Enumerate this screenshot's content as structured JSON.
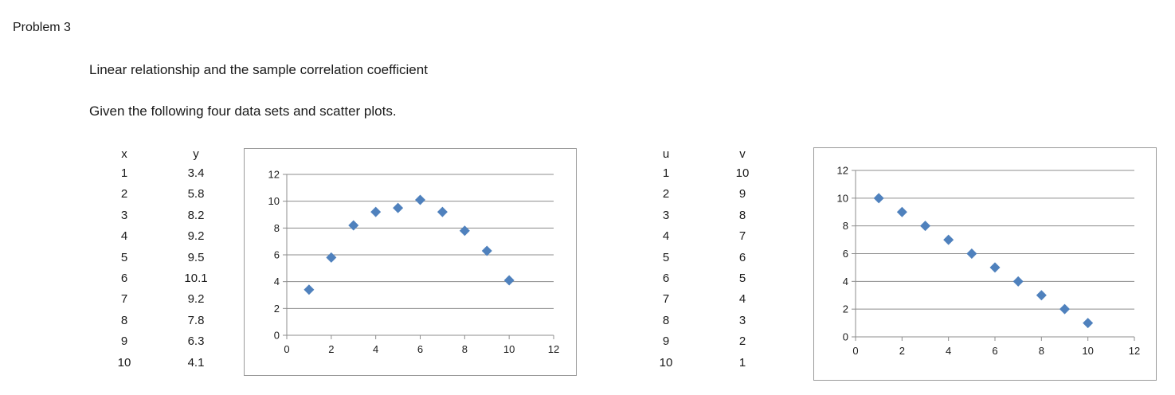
{
  "problem_title": "Problem 3",
  "topic": "Linear relationship and the sample correlation coefficient",
  "instructions": "Given the following four data sets and scatter plots.",
  "table1": {
    "headers": [
      "x",
      "y"
    ],
    "x": [
      "1",
      "2",
      "3",
      "4",
      "5",
      "6",
      "7",
      "8",
      "9",
      "10"
    ],
    "y": [
      "3.4",
      "5.8",
      "8.2",
      "9.2",
      "9.5",
      "10.1",
      "9.2",
      "7.8",
      "6.3",
      "4.1"
    ]
  },
  "table2": {
    "headers": [
      "u",
      "v"
    ],
    "u": [
      "1",
      "2",
      "3",
      "4",
      "5",
      "6",
      "7",
      "8",
      "9",
      "10"
    ],
    "v": [
      "10",
      "9",
      "8",
      "7",
      "6",
      "5",
      "4",
      "3",
      "2",
      "1"
    ]
  },
  "chart_data": [
    {
      "type": "scatter",
      "x": [
        1,
        2,
        3,
        4,
        5,
        6,
        7,
        8,
        9,
        10
      ],
      "y": [
        3.4,
        5.8,
        8.2,
        9.2,
        9.5,
        10.1,
        9.2,
        7.8,
        6.3,
        4.1
      ],
      "xlim": [
        0,
        12
      ],
      "ylim": [
        0,
        12
      ],
      "xticks": [
        "0",
        "2",
        "4",
        "6",
        "8",
        "10",
        "12"
      ],
      "yticks": [
        "0",
        "2",
        "4",
        "6",
        "8",
        "10",
        "12"
      ],
      "grid": "horizontal",
      "marker": "diamond",
      "color": "#4f81bd"
    },
    {
      "type": "scatter",
      "x": [
        1,
        2,
        3,
        4,
        5,
        6,
        7,
        8,
        9,
        10
      ],
      "y": [
        10,
        9,
        8,
        7,
        6,
        5,
        4,
        3,
        2,
        1
      ],
      "xlim": [
        0,
        12
      ],
      "ylim": [
        0,
        12
      ],
      "xticks": [
        "0",
        "2",
        "4",
        "6",
        "8",
        "10",
        "12"
      ],
      "yticks": [
        "0",
        "2",
        "4",
        "6",
        "8",
        "10",
        "12"
      ],
      "grid": "horizontal",
      "marker": "diamond",
      "color": "#4f81bd"
    }
  ]
}
